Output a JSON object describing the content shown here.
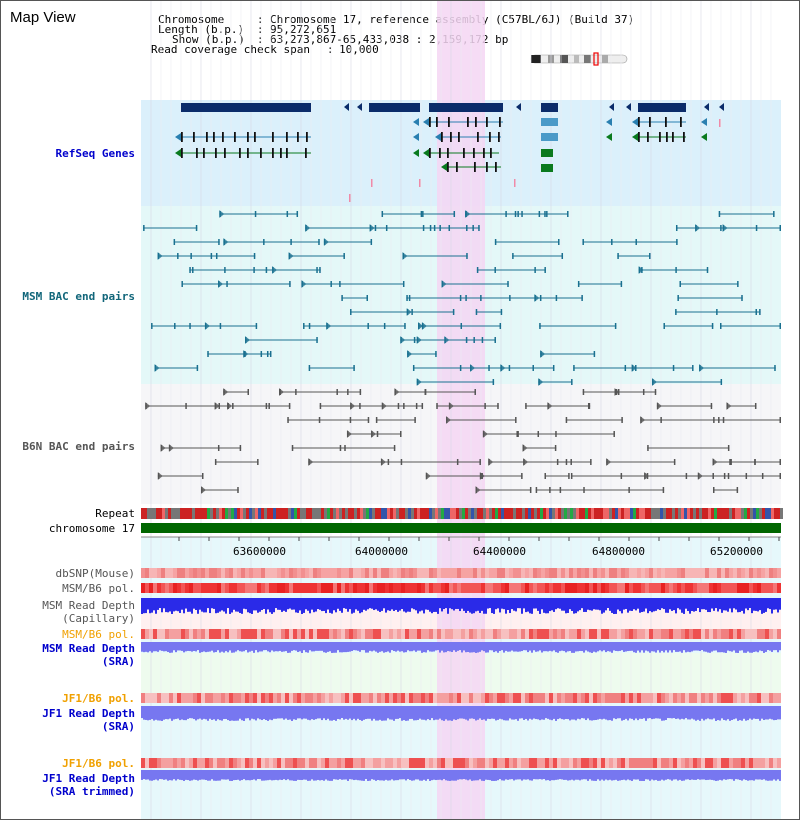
{
  "view": {
    "title": "Map View",
    "header": {
      "line1_key": "Chromosome",
      "line1_val": "Chromosome 17, reference assembly (C57BL/6J) (Build 37)",
      "line2_key": "Length (b.p.)",
      "line2_val": "95,272,651",
      "line3_key": "Show (b.p.)",
      "line3_val": "63,273,867-65,433,038 : 2,159,172 bp",
      "line4_key": "Read coverage check span",
      "line4_val": "10,000"
    }
  },
  "tracks": {
    "refseq": "RefSeq Genes",
    "msm_bac": "MSM BAC end pairs",
    "b6n_bac": "B6N BAC end pairs",
    "repeat": "Repeat",
    "chromosome": "chromosome 17",
    "dbsnp": "dbSNP(Mouse)",
    "msm_b6_pol": "MSM/B6 pol.",
    "msm_depth_cap_1": "MSM Read Depth",
    "msm_depth_cap_2": "(Capillary)",
    "msm_b6_pol2": "MSM/B6 pol.",
    "msm_depth_sra_1": "MSM Read Depth",
    "msm_depth_sra_2": "(SRA)",
    "jf1_b6_pol": "JF1/B6 pol.",
    "jf1_depth_sra_1": "JF1 Read Depth",
    "jf1_depth_sra_2": "(SRA)",
    "jf1_b6_pol2": "JF1/B6 pol.",
    "jf1_depth_trim_1": "JF1 Read Depth",
    "jf1_depth_trim_2": "(SRA trimmed)"
  },
  "axis": {
    "ticks": [
      "63600000",
      "64000000",
      "64400000",
      "64800000",
      "65200000"
    ]
  },
  "colors": {
    "refseq_bg": "#dbf0fb",
    "msm_bg": "#e4f8f8",
    "b6n_bg": "#f6f6f8",
    "highlight": "#f5d6f3",
    "label_blue": "#0000cc",
    "label_teal": "#11667a",
    "label_gray": "#555555",
    "label_orange": "#f0a000",
    "gene_navy": "#0b2c6a",
    "gene_green": "#0a7a1e",
    "chromosome_green": "#006600",
    "pol_red": "#ee3333",
    "depth_blue": "#2a2ae8",
    "depth_light": "#7777f0"
  }
}
